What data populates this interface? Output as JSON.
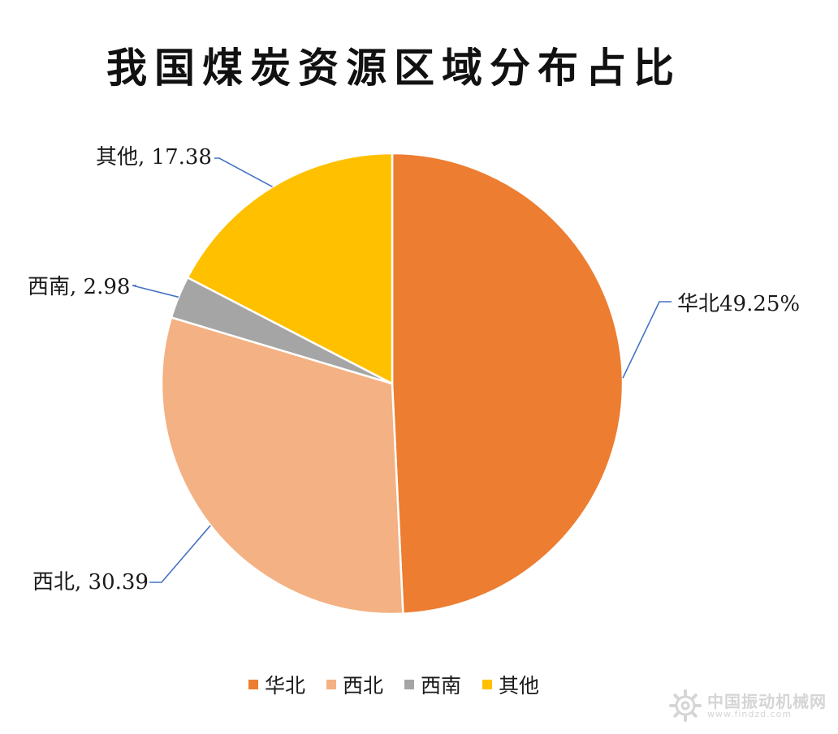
{
  "chart_data": {
    "type": "pie",
    "title": "我国煤炭资源区域分布占比",
    "categories": [
      "华北",
      "西北",
      "西南",
      "其他"
    ],
    "values": [
      49.25,
      30.39,
      2.98,
      17.38
    ],
    "colors": [
      "#ED7D31",
      "#F4B183",
      "#A5A5A5",
      "#FFC000"
    ],
    "data_labels": [
      "华北49.25%",
      "西北, 30.39",
      "西南, 2.98",
      "其他, 17.38"
    ],
    "legend": {
      "position": "bottom",
      "entries": [
        "华北",
        "西北",
        "西南",
        "其他"
      ]
    },
    "leader_line_color": "#4472C4"
  },
  "watermark": {
    "name": "中国振动机械网",
    "url": "www.findzd.com",
    "icon": "gear-logo-icon"
  }
}
